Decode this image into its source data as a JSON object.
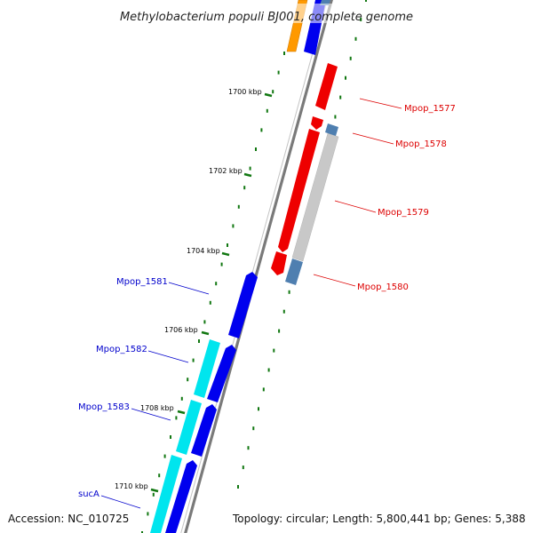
{
  "title": "Methylobacterium populi BJ001, complete genome",
  "footer": {
    "accession": "Accession: NC_010725",
    "topology": "Topology: circular; Length: 5,800,441 bp; Genes: 5,388"
  },
  "ticks": [
    {
      "label": "1700 kbp",
      "kbp": 1700
    },
    {
      "label": "1702 kbp",
      "kbp": 1702
    },
    {
      "label": "1704 kbp",
      "kbp": 1704
    },
    {
      "label": "1706 kbp",
      "kbp": 1706
    },
    {
      "label": "1708 kbp",
      "kbp": 1708
    },
    {
      "label": "1710 kbp",
      "kbp": 1710
    }
  ],
  "gene_labels": {
    "reverse": [
      "Mpop_1577",
      "Mpop_1578",
      "Mpop_1579",
      "Mpop_1580"
    ],
    "forward": [
      "Mpop_1581",
      "Mpop_1582",
      "Mpop_1583",
      "sucA"
    ]
  },
  "colors": {
    "forward_cds": "#0000ee",
    "reverse_cds": "#ee0000",
    "forward_label": "#0000cc",
    "reverse_label": "#dd0000",
    "cyan_feature": "#00e5ee",
    "gray_feature": "#c8c8c8",
    "steelblue_feature": "#4f7fb0",
    "orange_feature": "#ff9900",
    "tick_green": "#117711",
    "backbone": "#808080"
  }
}
